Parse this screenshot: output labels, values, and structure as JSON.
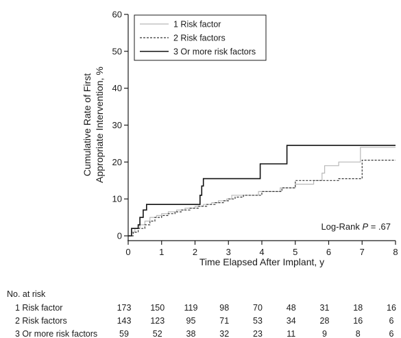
{
  "chart_data": {
    "type": "line",
    "step": true,
    "xlabel": "Time Elapsed After Implant, y",
    "ylabel_lines": [
      "Cumulative Rate of First",
      "Appropriate Intervention, %"
    ],
    "xlim": [
      0,
      8
    ],
    "ylim": [
      0,
      60
    ],
    "x_ticks": [
      0,
      1,
      2,
      3,
      4,
      5,
      6,
      7,
      8
    ],
    "y_ticks": [
      0,
      10,
      20,
      30,
      40,
      50,
      60
    ],
    "grid": false,
    "legend_position": "top-left",
    "annotation": {
      "prefix": "Log-Rank ",
      "italic": "P",
      "suffix": " = .67"
    },
    "series": [
      {
        "name": "1 Risk factor",
        "style": "solid",
        "color": "#b8b8b8",
        "points": [
          [
            0,
            0
          ],
          [
            0.1,
            1
          ],
          [
            0.2,
            2
          ],
          [
            0.35,
            3
          ],
          [
            0.5,
            4
          ],
          [
            0.65,
            5
          ],
          [
            0.85,
            5.5
          ],
          [
            1.0,
            6
          ],
          [
            1.2,
            6.5
          ],
          [
            1.45,
            7
          ],
          [
            1.7,
            7.5
          ],
          [
            2.0,
            8
          ],
          [
            2.25,
            8.5
          ],
          [
            2.5,
            9
          ],
          [
            2.7,
            9.5
          ],
          [
            2.95,
            10
          ],
          [
            3.1,
            11
          ],
          [
            3.6,
            11
          ],
          [
            3.9,
            12
          ],
          [
            4.3,
            12
          ],
          [
            4.55,
            13
          ],
          [
            4.75,
            13
          ],
          [
            5.0,
            14
          ],
          [
            5.4,
            14
          ],
          [
            5.55,
            15
          ],
          [
            5.7,
            15
          ],
          [
            5.8,
            17
          ],
          [
            5.88,
            19
          ],
          [
            6.3,
            20
          ],
          [
            6.9,
            20
          ],
          [
            6.95,
            24
          ],
          [
            8,
            24
          ]
        ]
      },
      {
        "name": "2 Risk factors",
        "style": "dashed",
        "color": "#333333",
        "points": [
          [
            0,
            0
          ],
          [
            0.15,
            1
          ],
          [
            0.3,
            2
          ],
          [
            0.5,
            3
          ],
          [
            0.65,
            4
          ],
          [
            0.8,
            5
          ],
          [
            1.0,
            5.5
          ],
          [
            1.2,
            6
          ],
          [
            1.4,
            6.5
          ],
          [
            1.6,
            7
          ],
          [
            1.85,
            7.5
          ],
          [
            2.1,
            8
          ],
          [
            2.35,
            8.5
          ],
          [
            2.6,
            9
          ],
          [
            2.85,
            9.5
          ],
          [
            3.0,
            10
          ],
          [
            3.2,
            10.5
          ],
          [
            3.45,
            11
          ],
          [
            3.8,
            11
          ],
          [
            4.0,
            12
          ],
          [
            4.4,
            12
          ],
          [
            4.6,
            13
          ],
          [
            4.8,
            13
          ],
          [
            5.0,
            15
          ],
          [
            5.8,
            15
          ],
          [
            6.3,
            15.5
          ],
          [
            6.95,
            15.5
          ],
          [
            7.0,
            20.5
          ],
          [
            8,
            20.5
          ]
        ]
      },
      {
        "name": "3 Or more risk factors",
        "style": "solid",
        "color": "#111111",
        "points": [
          [
            0,
            0
          ],
          [
            0.1,
            2
          ],
          [
            0.3,
            3
          ],
          [
            0.35,
            5
          ],
          [
            0.45,
            7
          ],
          [
            0.55,
            8.5
          ],
          [
            2.1,
            8.5
          ],
          [
            2.15,
            11
          ],
          [
            2.2,
            13.5
          ],
          [
            2.25,
            15.5
          ],
          [
            3.9,
            15.5
          ],
          [
            3.95,
            19.5
          ],
          [
            4.7,
            19.5
          ],
          [
            4.75,
            24.5
          ],
          [
            8,
            24.5
          ]
        ]
      }
    ],
    "risk_table": {
      "title": "No. at risk",
      "times": [
        0,
        1,
        2,
        3,
        4,
        5,
        6,
        7,
        8
      ],
      "rows": [
        {
          "label": "1 Risk factor",
          "values": [
            "173",
            "150",
            "119",
            "98",
            "70",
            "48",
            "31",
            "18",
            "16"
          ]
        },
        {
          "label": "2 Risk factors",
          "values": [
            "143",
            "123",
            "95",
            "71",
            "53",
            "34",
            "28",
            "16",
            "6"
          ]
        },
        {
          "label": "3 Or more risk factors",
          "values": [
            "59",
            "52",
            "38",
            "32",
            "23",
            "11",
            "9",
            "8",
            "6"
          ]
        }
      ]
    }
  }
}
